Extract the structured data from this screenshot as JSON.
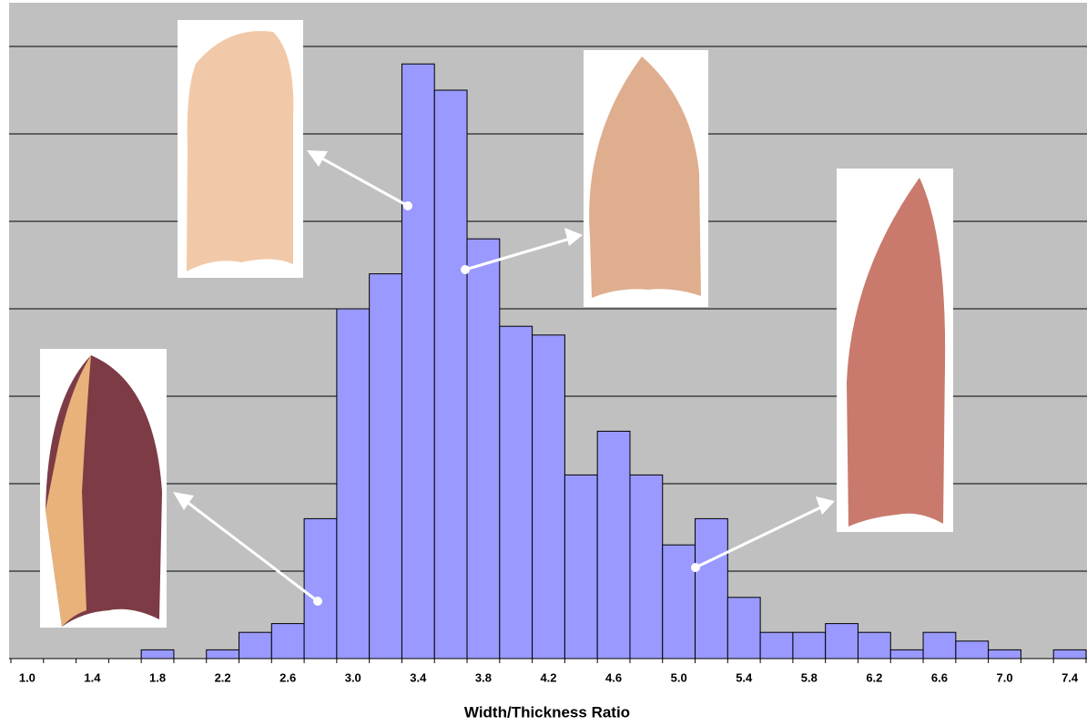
{
  "chart_data": {
    "type": "histogram",
    "x_label": "Width/Thickness Ratio",
    "bins": [
      0.9,
      1.1,
      1.3,
      1.5,
      1.7,
      1.9,
      2.1,
      2.3,
      2.5,
      2.7,
      2.9,
      3.1,
      3.3,
      3.5,
      3.7,
      3.9,
      4.1,
      4.3,
      4.5,
      4.7,
      4.9,
      5.1,
      5.3,
      5.5,
      5.7,
      5.9,
      6.1,
      6.3,
      6.5,
      6.7,
      6.9,
      7.1,
      7.3,
      7.5
    ],
    "values": [
      0,
      0,
      0,
      0,
      1,
      0,
      1,
      3,
      4,
      16,
      40,
      44,
      68,
      65,
      48,
      38,
      37,
      21,
      26,
      21,
      13,
      16,
      7,
      3,
      3,
      4,
      3,
      1,
      3,
      2,
      1,
      0,
      1
    ],
    "color": "#9999ff",
    "xlim": [
      0.9,
      7.5
    ],
    "xticks": [
      {
        "value": 1,
        "label": "1.0"
      },
      {
        "value": 1.4,
        "label": "1.4"
      },
      {
        "value": 1.8,
        "label": "1.8"
      },
      {
        "value": 2.2,
        "label": "2.2"
      },
      {
        "value": 2.6,
        "label": "2.6"
      },
      {
        "value": 3,
        "label": "3.0"
      },
      {
        "value": 3.4,
        "label": "3.4"
      },
      {
        "value": 3.8,
        "label": "3.8"
      },
      {
        "value": 4.2,
        "label": "4.2"
      },
      {
        "value": 4.6,
        "label": "4.6"
      },
      {
        "value": 5,
        "label": "5.0"
      },
      {
        "value": 5.4,
        "label": "5.4"
      },
      {
        "value": 5.8,
        "label": "5.8"
      },
      {
        "value": 6.2,
        "label": "6.2"
      },
      {
        "value": 6.6,
        "label": "6.6"
      },
      {
        "value": 7,
        "label": "7.0"
      },
      {
        "value": 7.4,
        "label": "7.4"
      }
    ],
    "ylim": [
      0,
      75
    ],
    "yticks": [
      0,
      10,
      20,
      30,
      40,
      50,
      60,
      70
    ],
    "grid": true
  }
}
